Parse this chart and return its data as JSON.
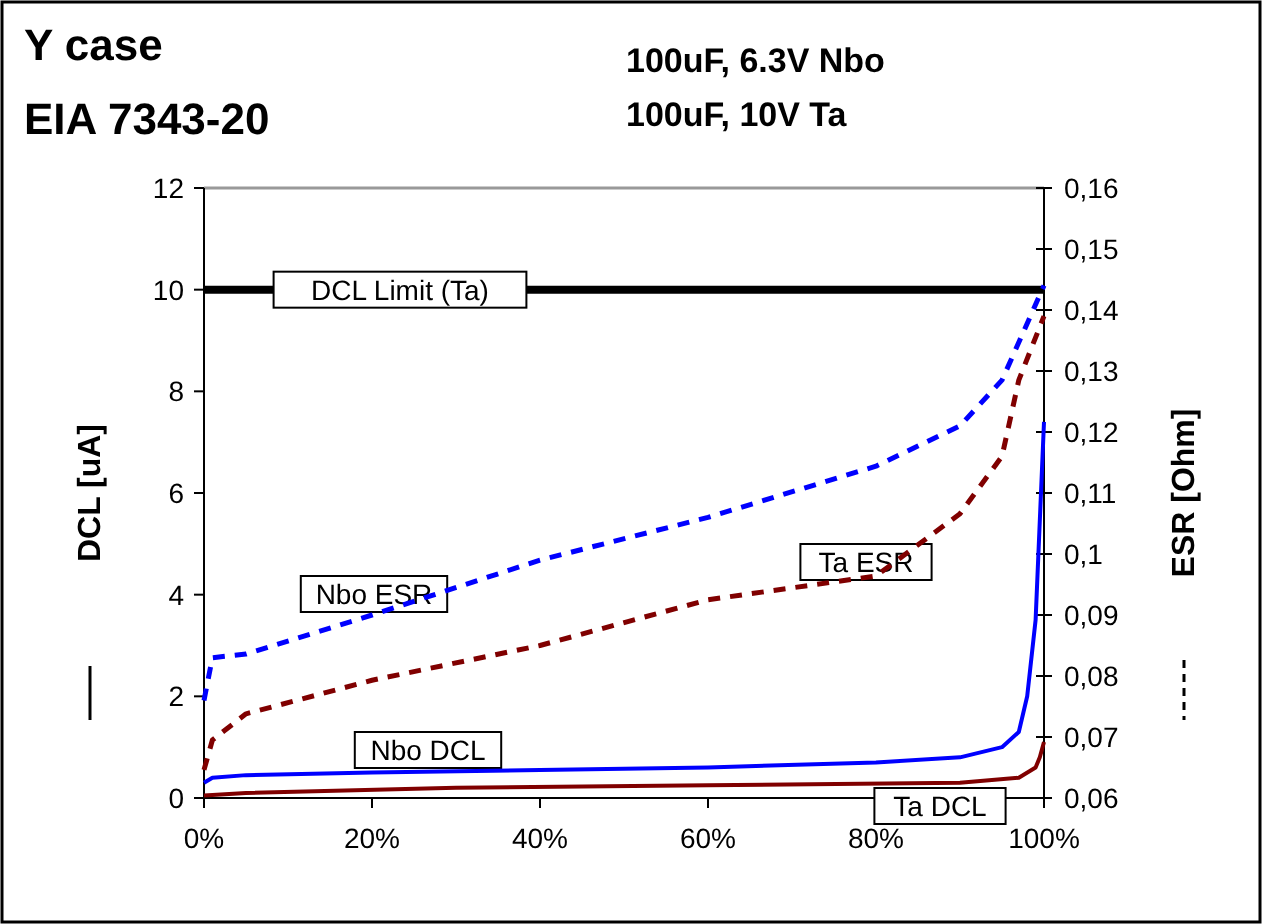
{
  "chart_data": {
    "type": "line",
    "title": "Y case",
    "subtitle": "EIA 7343-20",
    "annotations": [
      "100uF, 6.3V Nbo",
      "100uF, 10V Ta"
    ],
    "ylabel": "DCL [uA]",
    "y2label": "ESR [Ohm]",
    "xlim": [
      0,
      100
    ],
    "xticks": [
      {
        "value": 0,
        "label": "0%"
      },
      {
        "value": 20,
        "label": "20%"
      },
      {
        "value": 40,
        "label": "40%"
      },
      {
        "value": 60,
        "label": "60%"
      },
      {
        "value": 80,
        "label": "80%"
      },
      {
        "value": 100,
        "label": "100%"
      }
    ],
    "ylim": [
      0,
      12
    ],
    "yticks": [
      0,
      2,
      4,
      6,
      8,
      10,
      12
    ],
    "y2lim": [
      0.06,
      0.16
    ],
    "y2ticks": [
      {
        "value": 0.06,
        "label": "0,06"
      },
      {
        "value": 0.07,
        "label": "0,07"
      },
      {
        "value": 0.08,
        "label": "0,08"
      },
      {
        "value": 0.09,
        "label": "0,09"
      },
      {
        "value": 0.1,
        "label": "0,1"
      },
      {
        "value": 0.11,
        "label": "0,11"
      },
      {
        "value": 0.12,
        "label": "0,12"
      },
      {
        "value": 0.13,
        "label": "0,13"
      },
      {
        "value": 0.14,
        "label": "0,14"
      },
      {
        "value": 0.15,
        "label": "0,15"
      },
      {
        "value": 0.16,
        "label": "0,16"
      }
    ],
    "grid": false,
    "ref_lines": [
      {
        "axis": "y",
        "value": 10,
        "label": "DCL Limit (Ta)",
        "color": "#000000"
      }
    ],
    "series": [
      {
        "name": "Nbo DCL",
        "color": "#0000ff",
        "line_style": "solid",
        "x": [
          0,
          1,
          5,
          20,
          40,
          60,
          80,
          90,
          95,
          97,
          98,
          99,
          100
        ],
        "values": [
          0.3,
          0.4,
          0.45,
          0.5,
          0.55,
          0.6,
          0.7,
          0.8,
          1.0,
          1.3,
          2.0,
          3.5,
          7.4
        ]
      },
      {
        "name": "Ta DCL",
        "color": "#800000",
        "line_style": "solid",
        "x": [
          0,
          5,
          30,
          60,
          90,
          97,
          99,
          99.5,
          100
        ],
        "values": [
          0.05,
          0.1,
          0.2,
          0.25,
          0.3,
          0.4,
          0.6,
          0.8,
          1.1
        ]
      },
      {
        "name": "Nbo ESR",
        "color": "#0000ff",
        "line_style": "dashed",
        "axis": "y2",
        "x": [
          0,
          1,
          5,
          20,
          40,
          60,
          80,
          90,
          95,
          100
        ],
        "values": [
          0.076,
          0.083,
          0.0836,
          0.09,
          0.099,
          0.106,
          0.1144,
          0.121,
          0.1285,
          0.144
        ]
      },
      {
        "name": "Ta ESR",
        "color": "#800000",
        "line_style": "dashed",
        "axis": "y2",
        "x": [
          0,
          1,
          5,
          20,
          40,
          60,
          80,
          90,
          95,
          97,
          100
        ],
        "values": [
          0.0646,
          0.0695,
          0.0738,
          0.0793,
          0.085,
          0.0925,
          0.0964,
          0.1066,
          0.116,
          0.1285,
          0.139
        ]
      }
    ]
  }
}
